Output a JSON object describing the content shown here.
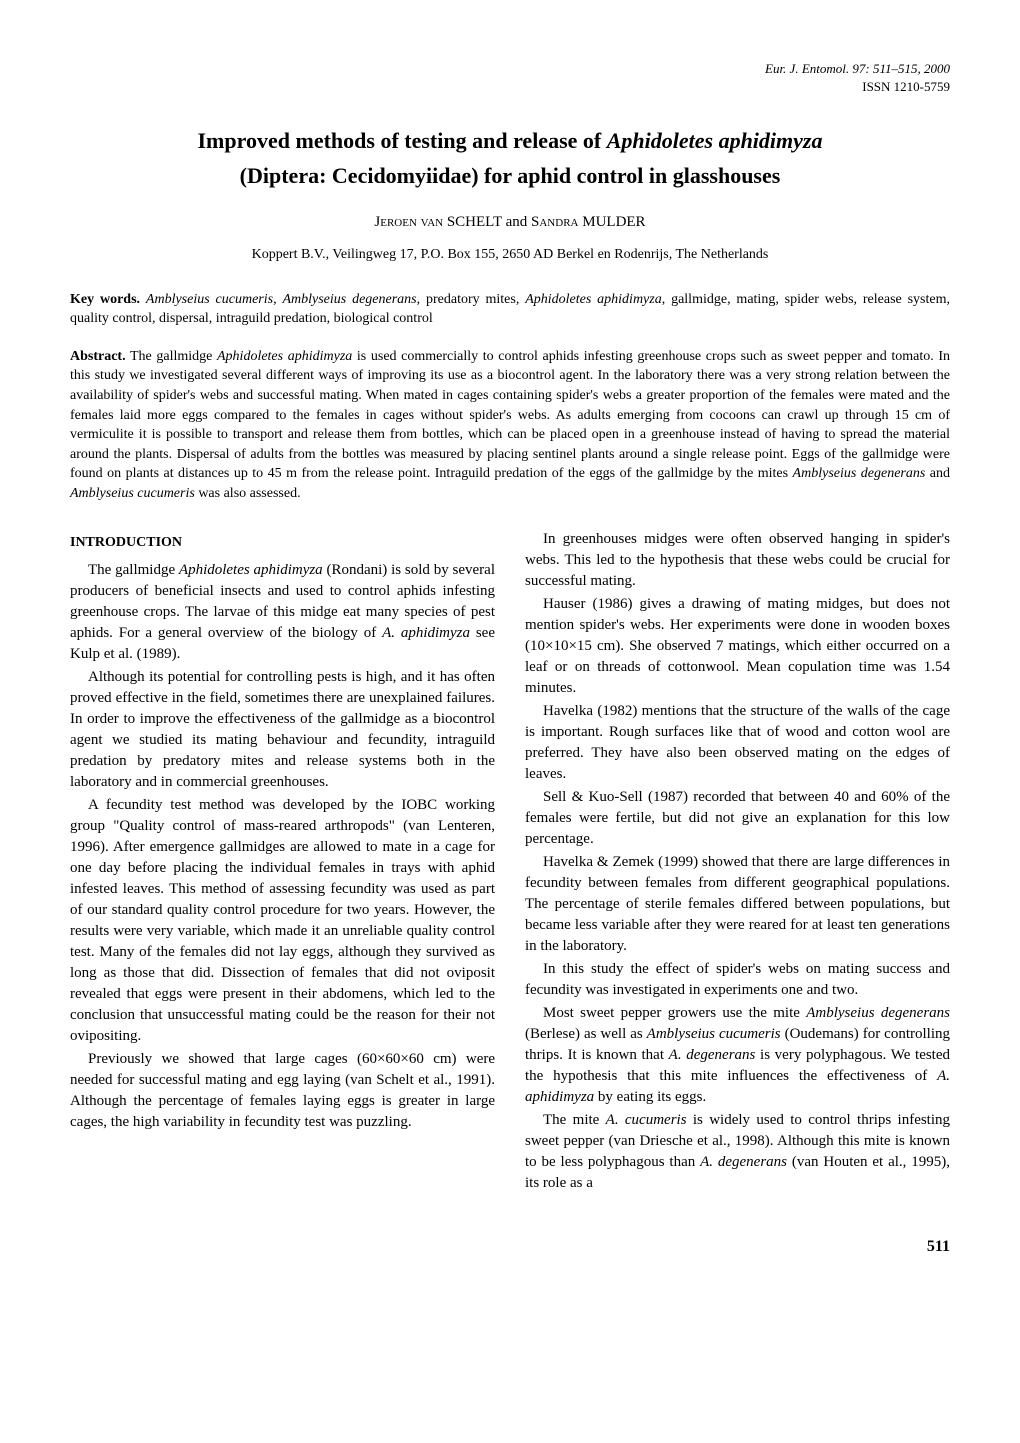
{
  "journal_meta": {
    "citation": "Eur. J. Entomol. 97: 511–515, 2000",
    "issn": "ISSN 1210-5759"
  },
  "title_line1": "Improved methods of testing and release of Aphidoletes aphidimyza",
  "title_line2": "(Diptera: Cecidomyiidae) for aphid control in glasshouses",
  "authors": "Jeroen van SCHELT and Sandra MULDER",
  "affiliation": "Koppert B.V., Veilingweg 17, P.O. Box 155, 2650 AD Berkel en Rodenrijs, The Netherlands",
  "keywords": {
    "label": "Key words.",
    "text": " Amblyseius cucumeris, Amblyseius degenerans, predatory mites, Aphidoletes aphidimyza, gallmidge, mating, spider webs, release system, quality control, dispersal, intraguild predation, biological control"
  },
  "abstract": {
    "label": "Abstract.",
    "text": " The gallmidge Aphidoletes aphidimyza is used commercially to control aphids infesting greenhouse crops such as sweet pepper and tomato. In this study we investigated several different ways of improving its use as a biocontrol agent. In the laboratory there was a very strong relation between the availability of spider's webs and successful mating. When mated in cages containing spider's webs a greater proportion of the females were mated and the females laid more eggs compared to the females in cages without spider's webs. As adults emerging from cocoons can crawl up through 15 cm of vermiculite it is possible to transport and release them from bottles, which can be placed open in a greenhouse instead of having to spread the material around the plants. Dispersal of adults from the bottles was measured by placing sentinel plants around a single release point. Eggs of the gallmidge were found on plants at distances up to 45 m from the release point. Intraguild predation of the eggs of the gallmidge by the mites Amblyseius degenerans and Amblyseius cucumeris was also assessed."
  },
  "section_heading": "INTRODUCTION",
  "left_column": {
    "p1": "The gallmidge Aphidoletes aphidimyza (Rondani) is sold by several producers of beneficial insects and used to control aphids infesting greenhouse crops. The larvae of this midge eat many species of pest aphids. For a general overview of the biology of A. aphidimyza see Kulp et al. (1989).",
    "p2": "Although its potential for controlling pests is high, and it has often proved effective in the field, sometimes there are unexplained failures. In order to improve the effectiveness of the gallmidge as a biocontrol agent we studied its mating behaviour and fecundity, intraguild predation by predatory mites and release systems both in the laboratory and in commercial greenhouses.",
    "p3": "A fecundity test method was developed by the IOBC working group \"Quality control of mass-reared arthropods\" (van Lenteren, 1996). After emergence gallmidges are allowed to mate in a cage for one day before placing the individual females in trays with aphid infested leaves. This method of assessing fecundity was used as part of our standard quality control procedure for two years. However, the results were very variable, which made it an unreliable quality control test. Many of the females did not lay eggs, although they survived as long as those that did. Dissection of females that did not oviposit revealed that eggs were present in their abdomens, which led to the conclusion that unsuccessful mating could be the reason for their not ovipositing.",
    "p4": "Previously we showed that large cages (60×60×60 cm) were needed for successful mating and egg laying (van Schelt et al., 1991). Although the percentage of females laying eggs is greater in large cages, the high variability in fecundity test was puzzling."
  },
  "right_column": {
    "p1": "In greenhouses midges were often observed hanging in spider's webs. This led to the hypothesis that these webs could be crucial for successful mating.",
    "p2": "Hauser (1986) gives a drawing of mating midges, but does not mention spider's webs. Her experiments were done in wooden boxes (10×10×15 cm). She observed 7 matings, which either occurred on a leaf or on threads of cottonwool. Mean copulation time was 1.54 minutes.",
    "p3": "Havelka (1982) mentions that the structure of the walls of the cage is important. Rough surfaces like that of wood and cotton wool are preferred. They have also been observed mating on the edges of leaves.",
    "p4": "Sell & Kuo-Sell (1987) recorded that between 40 and 60% of the females were fertile, but did not give an explanation for this low percentage.",
    "p5": "Havelka & Zemek (1999) showed that there are large differences in fecundity between females from different geographical populations. The percentage of sterile females differed between populations, but became less variable after they were reared for at least ten generations in the laboratory.",
    "p6": "In this study the effect of spider's webs on mating success and fecundity was investigated in experiments one and two.",
    "p7": "Most sweet pepper growers use the mite Amblyseius degenerans (Berlese) as well as Amblyseius cucumeris (Oudemans) for controlling thrips. It is known that A. degenerans is very polyphagous. We tested the hypothesis that this mite influences the effectiveness of A. aphidimyza by eating its eggs.",
    "p8": "The mite A. cucumeris is widely used to control thrips infesting sweet pepper (van Driesche et al., 1998). Although this mite is known to be less polyphagous than A. degenerans (van Houten et al., 1995), its role as a"
  },
  "page_number": "511"
}
